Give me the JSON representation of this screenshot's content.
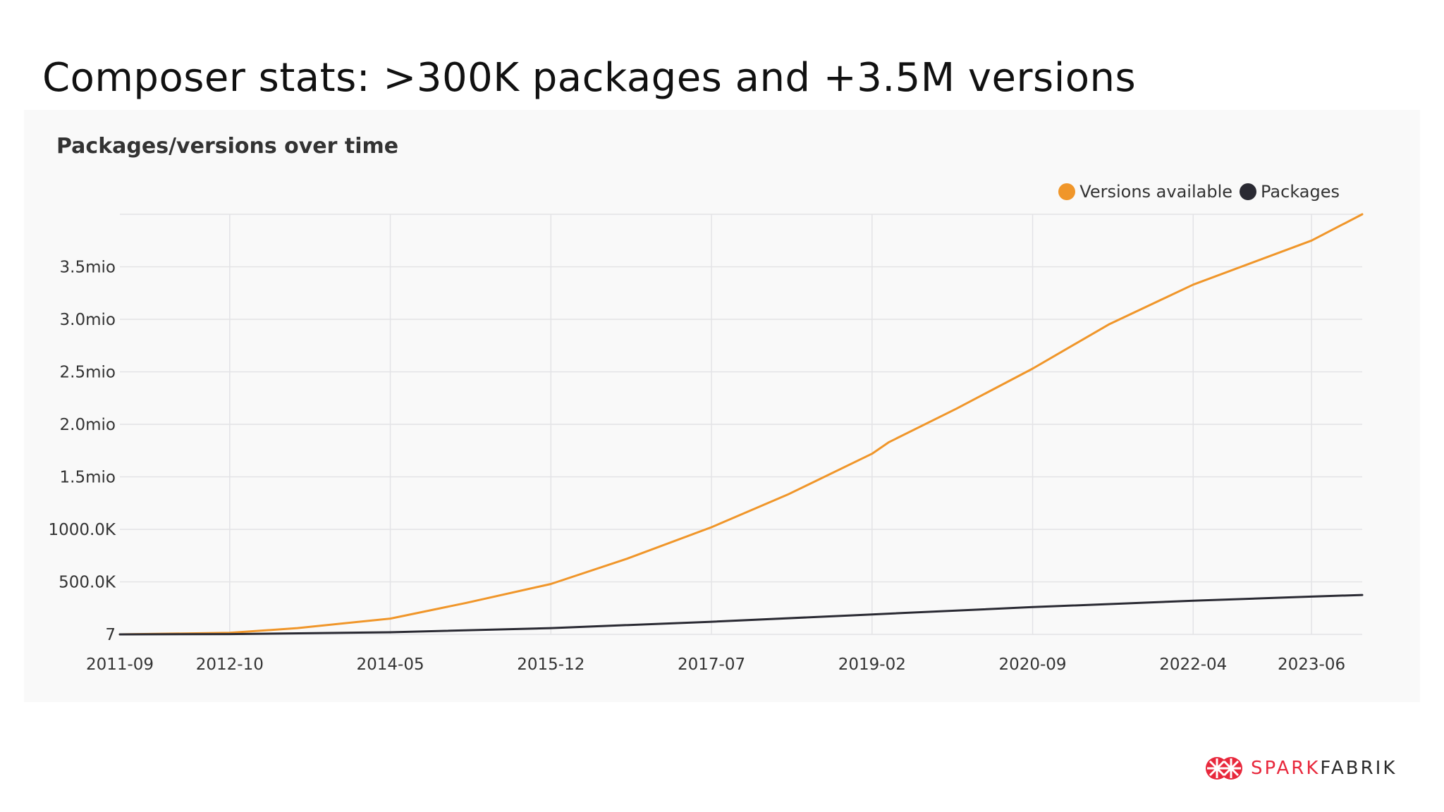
{
  "slide": {
    "title": "Composer stats: >300K packages and +3.5M versions"
  },
  "brand": {
    "name_part1": "SPARK",
    "name_part2": "FABRIK",
    "accent_color": "#e8283c"
  },
  "chart_data": {
    "type": "line",
    "title": "Packages/versions over time",
    "xlabel": "",
    "ylabel": "",
    "x_ticks": [
      "2011-09",
      "2012-10",
      "2014-05",
      "2015-12",
      "2017-07",
      "2019-02",
      "2020-09",
      "2022-04",
      "2023-06"
    ],
    "y_ticks": [
      "7",
      "500.0K",
      "1000.0K",
      "1.5mio",
      "2.0mio",
      "2.5mio",
      "3.0mio",
      "3.5mio"
    ],
    "ylim": [
      0,
      4000000
    ],
    "xlim": [
      "2011-09",
      "2023-12"
    ],
    "grid": true,
    "legend_position": "top-right",
    "series": [
      {
        "name": "Versions available",
        "color": "#f0962a",
        "points": [
          [
            "2011-09",
            0
          ],
          [
            "2012-10",
            15000
          ],
          [
            "2013-06",
            60000
          ],
          [
            "2014-05",
            150000
          ],
          [
            "2015-02",
            300000
          ],
          [
            "2015-12",
            480000
          ],
          [
            "2016-09",
            720000
          ],
          [
            "2017-07",
            1020000
          ],
          [
            "2018-04",
            1330000
          ],
          [
            "2019-02",
            1720000
          ],
          [
            "2019-04",
            1830000
          ],
          [
            "2019-12",
            2150000
          ],
          [
            "2020-09",
            2530000
          ],
          [
            "2021-06",
            2950000
          ],
          [
            "2022-04",
            3330000
          ],
          [
            "2023-06",
            3750000
          ],
          [
            "2023-12",
            4000000
          ]
        ]
      },
      {
        "name": "Packages",
        "color": "#2a2a33",
        "points": [
          [
            "2011-09",
            0
          ],
          [
            "2012-10",
            3000
          ],
          [
            "2014-05",
            20000
          ],
          [
            "2015-12",
            60000
          ],
          [
            "2017-07",
            120000
          ],
          [
            "2019-02",
            190000
          ],
          [
            "2020-09",
            260000
          ],
          [
            "2022-04",
            320000
          ],
          [
            "2023-06",
            360000
          ],
          [
            "2023-12",
            375000
          ]
        ]
      }
    ]
  }
}
